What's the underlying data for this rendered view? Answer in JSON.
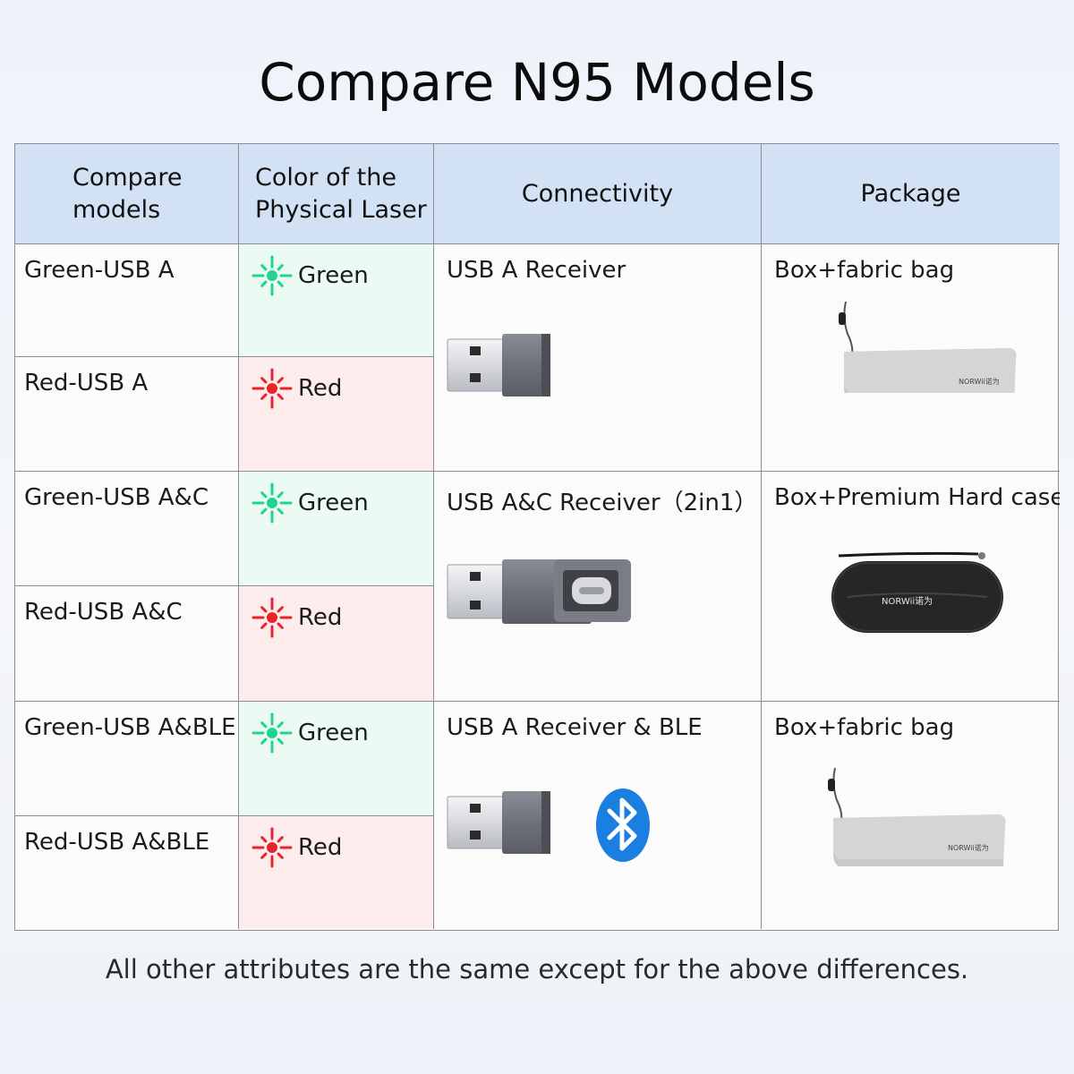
{
  "title": "Compare N95 Models",
  "headers": {
    "models": [
      "Compare",
      "models"
    ],
    "laser": [
      "Color of the",
      "Physical Laser"
    ],
    "connectivity": "Connectivity",
    "package": "Package"
  },
  "rows": [
    {
      "model": "Green-USB A",
      "laser": "Green",
      "laser_color": "#1fd48b"
    },
    {
      "model": "Red-USB A",
      "laser": "Red",
      "laser_color": "#e8232a"
    },
    {
      "model": "Green-USB A&C",
      "laser": "Green",
      "laser_color": "#1fd48b"
    },
    {
      "model": "Red-USB A&C",
      "laser": "Red",
      "laser_color": "#e8232a"
    },
    {
      "model": "Green-USB A&BLE",
      "laser": "Green",
      "laser_color": "#1fd48b"
    },
    {
      "model": "Red-USB A&BLE",
      "laser": "Red",
      "laser_color": "#e8232a"
    }
  ],
  "groups": [
    {
      "connectivity": "USB A Receiver",
      "package": "Box+fabric bag",
      "receiver_icon": "usb-a-receiver-icon",
      "package_icon": "fabric-bag-icon"
    },
    {
      "connectivity": "USB A&C Receiver（2in1）",
      "package": "Box+Premium Hard case",
      "receiver_icon": "usb-a-c-receiver-icon",
      "package_icon": "hard-case-icon"
    },
    {
      "connectivity": "USB A Receiver & BLE",
      "package": "Box+fabric bag",
      "receiver_icon": "usb-a-receiver-icon",
      "package_icon": "fabric-bag-icon",
      "extra_icon": "bluetooth-icon"
    }
  ],
  "brand": "NORWii诺为",
  "footnote": "All other attributes are the same except for the above differences.",
  "colors": {
    "header_bg": "#d2e2f4",
    "green_bg": "#ebfaf3",
    "red_bg": "#fcecec",
    "bluetooth": "#1a7fe0"
  }
}
